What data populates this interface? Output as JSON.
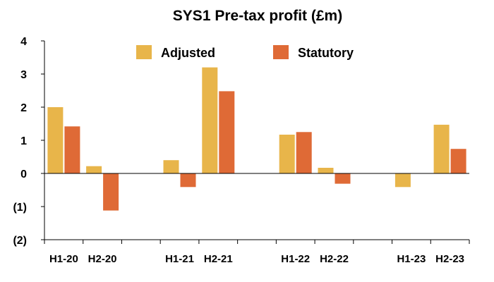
{
  "chart_data": {
    "type": "bar",
    "title": "SYS1 Pre-tax profit (£m)",
    "xlabel": "",
    "ylabel": "",
    "categories": [
      "H1-20",
      "H2-20",
      "",
      "H1-21",
      "H2-21",
      "",
      "H1-22",
      "H2-22",
      "",
      "H1-23",
      "H2-23"
    ],
    "series": [
      {
        "name": "Adjusted",
        "color": "#E8B54A",
        "values": [
          2.0,
          0.22,
          null,
          0.4,
          3.2,
          null,
          1.17,
          0.17,
          null,
          -0.41,
          1.47
        ]
      },
      {
        "name": "Statutory",
        "color": "#DF6A36",
        "values": [
          1.42,
          -1.12,
          null,
          -0.41,
          2.48,
          null,
          1.25,
          -0.31,
          null,
          null,
          0.74
        ]
      }
    ],
    "ylim": [
      -2,
      4
    ],
    "yticks": [
      {
        "value": 4,
        "label": "4"
      },
      {
        "value": 3,
        "label": "3"
      },
      {
        "value": 2,
        "label": "2"
      },
      {
        "value": 1,
        "label": "1"
      },
      {
        "value": 0,
        "label": "0"
      },
      {
        "value": -1,
        "label": "(1)"
      },
      {
        "value": -2,
        "label": "(2)"
      }
    ],
    "grid": false,
    "legend": "top-center"
  }
}
